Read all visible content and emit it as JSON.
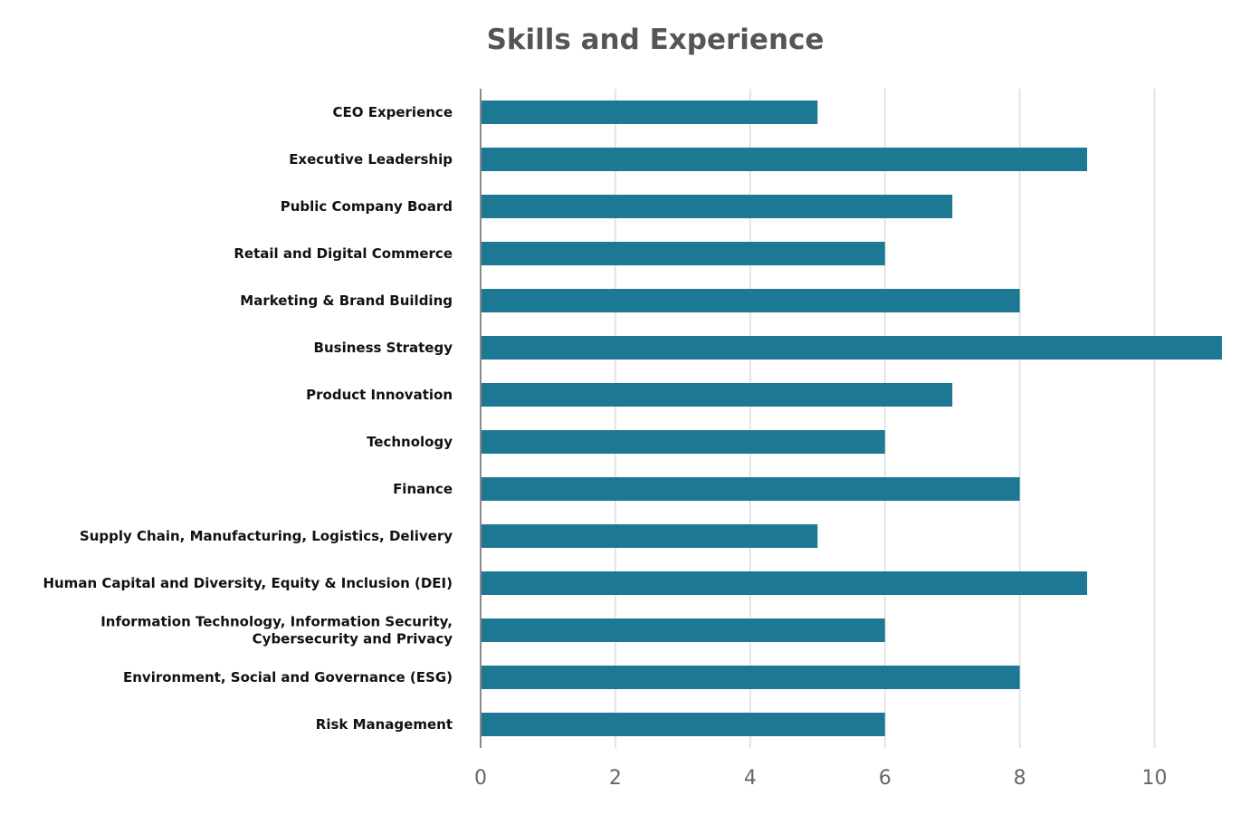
{
  "chart_data": {
    "type": "bar",
    "orientation": "horizontal",
    "title": "Skills and Experience",
    "xlabel": "",
    "ylabel": "",
    "xlim": [
      0,
      11
    ],
    "xticks": [
      0,
      2,
      4,
      6,
      8,
      10
    ],
    "grid": true,
    "bar_color": "#1d7893",
    "categories": [
      "CEO Experience",
      "Executive Leadership",
      "Public Company Board",
      "Retail and Digital Commerce",
      "Marketing & Brand Building",
      "Business Strategy",
      "Product Innovation",
      "Technology",
      "Finance",
      "Supply Chain, Manufacturing, Logistics, Delivery",
      "Human Capital and Diversity, Equity & Inclusion (DEI)",
      "Information Technology, Information Security, Cybersecurity and Privacy",
      "Environment, Social and Governance (ESG)",
      "Risk Management"
    ],
    "category_lines": [
      [
        "CEO Experience"
      ],
      [
        "Executive Leadership"
      ],
      [
        "Public Company Board"
      ],
      [
        "Retail and Digital Commerce"
      ],
      [
        "Marketing & Brand Building"
      ],
      [
        "Business Strategy"
      ],
      [
        "Product Innovation"
      ],
      [
        "Technology"
      ],
      [
        "Finance"
      ],
      [
        "Supply Chain, Manufacturing, Logistics, Delivery"
      ],
      [
        "Human Capital and Diversity, Equity & Inclusion (DEI)"
      ],
      [
        "Information Technology, Information Security,",
        "Cybersecurity and Privacy"
      ],
      [
        "Environment, Social and Governance (ESG)"
      ],
      [
        "Risk Management"
      ]
    ],
    "values": [
      5,
      9,
      7,
      6,
      8,
      11,
      7,
      6,
      8,
      5,
      9,
      6,
      8,
      6
    ]
  }
}
